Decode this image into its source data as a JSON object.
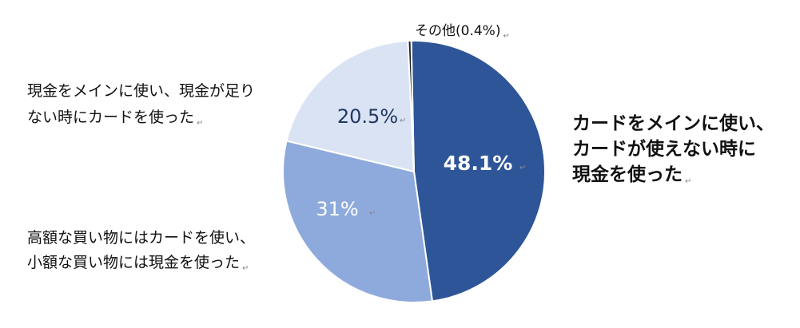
{
  "chart_data": {
    "type": "pie",
    "title": "",
    "series": [
      {
        "category": "カードをメインに使い、カードが使えない時に現金を使った",
        "category_lines": [
          "カードをメインに使い、",
          "カードが使えない時に",
          "現金を使った"
        ],
        "value": 48.1,
        "value_label": "48.1%",
        "color": "#2e5597"
      },
      {
        "category": "高額な買い物にはカードを使い、小額な買い物には現金を使った",
        "category_lines": [
          "高額な買い物にはカードを使い、",
          "小額な買い物には現金を使った"
        ],
        "value": 31,
        "value_label": "31%",
        "color": "#8eaadc"
      },
      {
        "category": "現金をメインに使い、現金が足りない時にカードを使った",
        "category_lines": [
          "現金をメインに使い、現金が足り",
          "ない時にカードを使った"
        ],
        "value": 20.5,
        "value_label": "20.5%",
        "color": "#dae3f3"
      },
      {
        "category": "その他(0.4%)",
        "category_lines": [
          "その他(0.4%)"
        ],
        "value": 0.4,
        "value_label": "",
        "color": "#1f1f1f"
      }
    ],
    "start_angle": "12 o'clock",
    "direction": "clockwise",
    "legend": "none",
    "slice_border_color": "#ffffff",
    "value_label_colors": [
      "#ffffff",
      "#ffffff",
      "#1f3864",
      "#111111"
    ]
  }
}
